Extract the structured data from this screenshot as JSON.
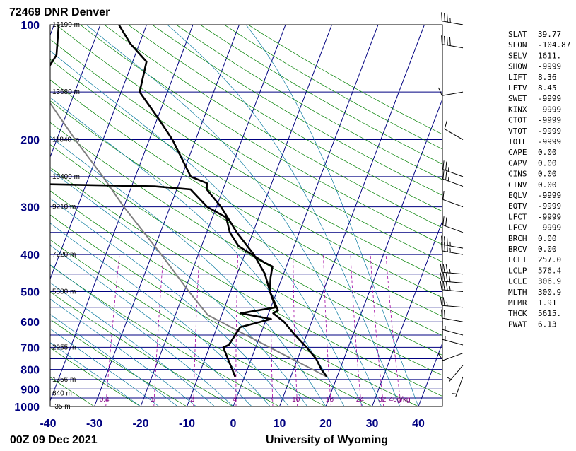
{
  "title": "72469 DNR Denver",
  "footer": {
    "datetime": "00Z 09 Dec 2021",
    "source": "University of Wyoming"
  },
  "colors": {
    "isobar": "#000080",
    "isotherm": "#000080",
    "dry_adiabat": "#008000",
    "moist_adiabat": "#0b7ba0",
    "mixing_ratio": "#a000a0",
    "parcel": "#7f7f7f",
    "sounding": "#000000"
  },
  "chart_data": {
    "type": "skew-t",
    "title": "72469 DNR Denver",
    "xlabel": "",
    "ylabel": "",
    "xlim": [
      -40,
      45
    ],
    "ylim": [
      1000,
      100
    ],
    "grid": true,
    "pressure_ticks": [
      100,
      200,
      300,
      400,
      500,
      600,
      700,
      800,
      900,
      1000
    ],
    "temperature_ticks": [
      -40,
      -30,
      -20,
      -10,
      0,
      10,
      20,
      30,
      40
    ],
    "height_labels": [
      {
        "p": 100,
        "label": "16190 m"
      },
      {
        "p": 150,
        "label": "13680 m"
      },
      {
        "p": 200,
        "label": "11840 m"
      },
      {
        "p": 250,
        "label": "10400 m"
      },
      {
        "p": 300,
        "label": "9210 m"
      },
      {
        "p": 400,
        "label": "7220 m"
      },
      {
        "p": 500,
        "label": "5580 m"
      },
      {
        "p": 700,
        "label": "2955 m"
      },
      {
        "p": 850,
        "label": "1356 m"
      },
      {
        "p": 925,
        "label": "640 m"
      },
      {
        "p": 1000,
        "label": "-35 m"
      }
    ],
    "mixing_ratio_labels": [
      "0.4",
      "1",
      "2",
      "4",
      "7",
      "10",
      "16",
      "24",
      "32",
      "40g/kg"
    ],
    "temperature": [
      {
        "p": 836,
        "t": 17.8
      },
      {
        "p": 800,
        "t": 16.0
      },
      {
        "p": 750,
        "t": 14.0
      },
      {
        "p": 700,
        "t": 11.0
      },
      {
        "p": 650,
        "t": 7.5
      },
      {
        "p": 600,
        "t": 4.0
      },
      {
        "p": 570,
        "t": 1.0
      },
      {
        "p": 560,
        "t": 1.8
      },
      {
        "p": 500,
        "t": -1.5
      },
      {
        "p": 450,
        "t": -4.0
      },
      {
        "p": 400,
        "t": -8.0
      },
      {
        "p": 350,
        "t": -13.5
      },
      {
        "p": 300,
        "t": -19.0
      },
      {
        "p": 270,
        "t": -23.5
      },
      {
        "p": 260,
        "t": -24.0
      },
      {
        "p": 250,
        "t": -28.0
      },
      {
        "p": 200,
        "t": -35.0
      },
      {
        "p": 175,
        "t": -40.0
      },
      {
        "p": 150,
        "t": -46.0
      },
      {
        "p": 125,
        "t": -47.0
      },
      {
        "p": 112,
        "t": -52.0
      },
      {
        "p": 100,
        "t": -56.0
      }
    ],
    "dewpoint": [
      {
        "p": 836,
        "t": -2.0
      },
      {
        "p": 700,
        "t": -7.0
      },
      {
        "p": 690,
        "t": -6.0
      },
      {
        "p": 620,
        "t": -5.0
      },
      {
        "p": 590,
        "t": 1.0
      },
      {
        "p": 570,
        "t": -6.0
      },
      {
        "p": 550,
        "t": 1.0
      },
      {
        "p": 500,
        "t": -1.5
      },
      {
        "p": 460,
        "t": -2.5
      },
      {
        "p": 430,
        "t": -3.0
      },
      {
        "p": 420,
        "t": -5.0
      },
      {
        "p": 380,
        "t": -12.0
      },
      {
        "p": 350,
        "t": -15.0
      },
      {
        "p": 320,
        "t": -17.0
      },
      {
        "p": 300,
        "t": -22.0
      },
      {
        "p": 270,
        "t": -27.0
      },
      {
        "p": 265,
        "t": -35.0
      },
      {
        "p": 260,
        "t": -70.0
      },
      {
        "p": 250,
        "t": -73.0
      },
      {
        "p": 200,
        "t": -73.0
      },
      {
        "p": 160,
        "t": -68.0
      },
      {
        "p": 150,
        "t": -69.0
      },
      {
        "p": 120,
        "t": -67.0
      },
      {
        "p": 100,
        "t": -69.0
      }
    ],
    "parcel": [
      {
        "p": 836,
        "t": 17.8
      },
      {
        "p": 700,
        "t": 3.0
      },
      {
        "p": 576,
        "t": -13.0
      },
      {
        "p": 500,
        "t": -19.0
      },
      {
        "p": 400,
        "t": -28.0
      },
      {
        "p": 300,
        "t": -40.0
      },
      {
        "p": 250,
        "t": -47.0
      },
      {
        "p": 200,
        "t": -56.0
      },
      {
        "p": 150,
        "t": -67.0
      },
      {
        "p": 100,
        "t": -80.0
      }
    ],
    "wind_barbs": [
      {
        "p": 100,
        "dir": 280,
        "kt": 35
      },
      {
        "p": 115,
        "dir": 280,
        "kt": 40
      },
      {
        "p": 150,
        "dir": 260,
        "kt": 10
      },
      {
        "p": 200,
        "dir": 300,
        "kt": 10
      },
      {
        "p": 250,
        "dir": 290,
        "kt": 25
      },
      {
        "p": 265,
        "dir": 290,
        "kt": 25
      },
      {
        "p": 300,
        "dir": 290,
        "kt": 10
      },
      {
        "p": 350,
        "dir": 290,
        "kt": 20
      },
      {
        "p": 385,
        "dir": 280,
        "kt": 35
      },
      {
        "p": 400,
        "dir": 280,
        "kt": 35
      },
      {
        "p": 450,
        "dir": 275,
        "kt": 35
      },
      {
        "p": 475,
        "dir": 275,
        "kt": 40
      },
      {
        "p": 500,
        "dir": 275,
        "kt": 35
      },
      {
        "p": 550,
        "dir": 275,
        "kt": 25
      },
      {
        "p": 600,
        "dir": 280,
        "kt": 20
      },
      {
        "p": 650,
        "dir": 285,
        "kt": 15
      },
      {
        "p": 690,
        "dir": 285,
        "kt": 15
      },
      {
        "p": 725,
        "dir": 250,
        "kt": 10
      },
      {
        "p": 780,
        "dir": 220,
        "kt": 5
      },
      {
        "p": 836,
        "dir": 200,
        "kt": 5
      }
    ],
    "indices": [
      {
        "name": "SLAT",
        "value": "39.77"
      },
      {
        "name": "SLON",
        "value": "-104.87"
      },
      {
        "name": "SELV",
        "value": "1611."
      },
      {
        "name": "SHOW",
        "value": "-9999"
      },
      {
        "name": "LIFT",
        "value": "8.36"
      },
      {
        "name": "LFTV",
        "value": "8.45"
      },
      {
        "name": "SWET",
        "value": "-9999"
      },
      {
        "name": "KINX",
        "value": "-9999"
      },
      {
        "name": "CTOT",
        "value": "-9999"
      },
      {
        "name": "VTOT",
        "value": "-9999"
      },
      {
        "name": "TOTL",
        "value": "-9999"
      },
      {
        "name": "CAPE",
        "value": "0.00"
      },
      {
        "name": "CAPV",
        "value": "0.00"
      },
      {
        "name": "CINS",
        "value": "0.00"
      },
      {
        "name": "CINV",
        "value": "0.00"
      },
      {
        "name": "EQLV",
        "value": "-9999"
      },
      {
        "name": "EQTV",
        "value": "-9999"
      },
      {
        "name": "LFCT",
        "value": "-9999"
      },
      {
        "name": "LFCV",
        "value": "-9999"
      },
      {
        "name": "BRCH",
        "value": "0.00"
      },
      {
        "name": "BRCV",
        "value": "0.00"
      },
      {
        "name": "LCLT",
        "value": "257.0"
      },
      {
        "name": "LCLP",
        "value": "576.4"
      },
      {
        "name": "LCLE",
        "value": "306.9"
      },
      {
        "name": "MLTH",
        "value": "300.9"
      },
      {
        "name": "MLMR",
        "value": "1.91"
      },
      {
        "name": "THCK",
        "value": "5615."
      },
      {
        "name": "PWAT",
        "value": "6.13"
      }
    ]
  }
}
